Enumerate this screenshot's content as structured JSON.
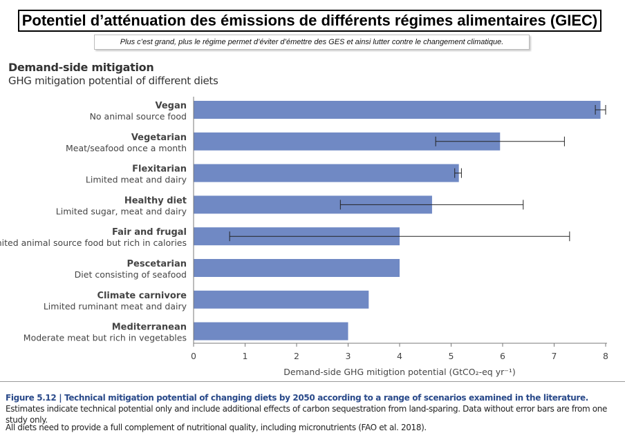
{
  "header": {
    "title": "Potentiel d’atténuation des émissions de différents régimes alimentaires (GIEC)",
    "subtitle": "Plus c’est grand, plus le régime permet d’éviter d’émettre des GES et ainsi lutter contre le changement climatique."
  },
  "chart_data": {
    "type": "bar",
    "orientation": "horizontal",
    "title": "Demand-side mitigation",
    "subtitle": "GHG mitigation potential of different diets",
    "xlabel": "Demand-side GHG mitigtion potential (GtCO₂-eq yr⁻¹)",
    "xlim": [
      0,
      8
    ],
    "xticks": [
      0,
      1,
      2,
      3,
      4,
      5,
      6,
      7,
      8
    ],
    "bar_color": "#7089c4",
    "categories": [
      {
        "name": "Vegan",
        "description": "No animal source food",
        "value": 7.9,
        "error": [
          7.8,
          8.0
        ]
      },
      {
        "name": "Vegetarian",
        "description": "Meat/seafood once a month",
        "value": 5.95,
        "error": [
          4.7,
          7.2
        ]
      },
      {
        "name": "Flexitarian",
        "description": "Limited meat and dairy",
        "value": 5.15,
        "error": [
          5.07,
          5.2
        ]
      },
      {
        "name": "Healthy diet",
        "description": "Limited sugar, meat and dairy",
        "value": 4.63,
        "error": [
          2.85,
          6.4
        ]
      },
      {
        "name": "Fair and frugal",
        "description": "Limited animal source food but rich in calories",
        "value": 4.0,
        "error": [
          0.7,
          7.3
        ]
      },
      {
        "name": "Pescetarian",
        "description": "Diet consisting of seafood",
        "value": 4.0,
        "error": null
      },
      {
        "name": "Climate carnivore",
        "description": "Limited ruminant meat and dairy",
        "value": 3.4,
        "error": null
      },
      {
        "name": "Mediterranean",
        "description": "Moderate meat but rich in vegetables",
        "value": 3.0,
        "error": null
      }
    ]
  },
  "caption": {
    "lead": "Figure 5.12 |  Technical mitigation potential of changing diets by 2050 according to a range of scenarios examined in the literature.",
    "body": " Estimates indicate technical potential only and include additional effects of carbon sequestration from land-sparing. Data without error bars are from one study only.",
    "note": "All diets need to provide a full complement of nutritional quality, including micronutrients (FAO et al. 2018)."
  }
}
